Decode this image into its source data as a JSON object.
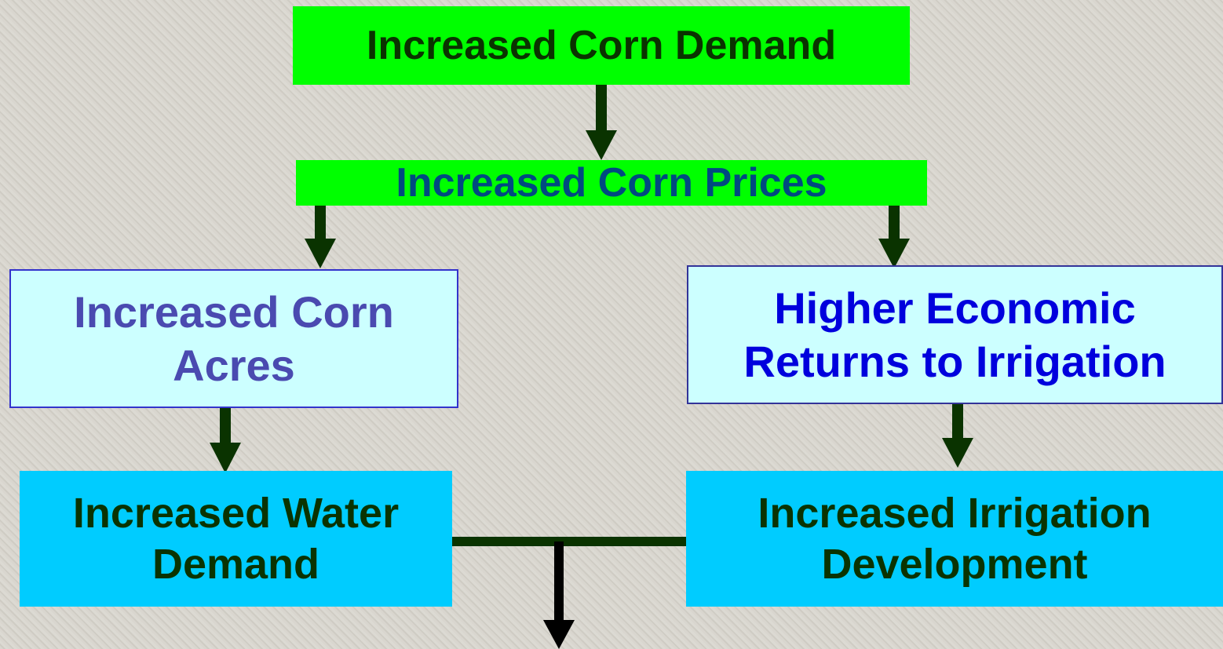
{
  "nodes": [
    {
      "label": "Increased Corn Demand"
    },
    {
      "label": "Increased Corn Prices"
    },
    {
      "label": "Increased Corn Acres"
    },
    {
      "label": "Higher Economic Returns to Irrigation"
    },
    {
      "label": "Increased Water Demand"
    },
    {
      "label": "Increased Irrigation Development"
    }
  ]
}
